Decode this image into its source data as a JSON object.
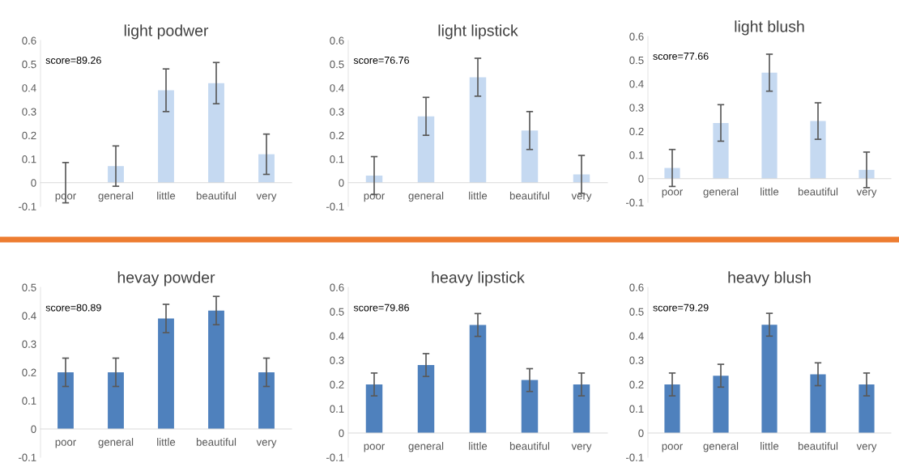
{
  "chart_data": [
    {
      "type": "bar",
      "title": "light podwer",
      "annotations": [
        "score=89.26"
      ],
      "categories": [
        "poor",
        "general",
        "little",
        "beautiful",
        "very"
      ],
      "values": [
        0,
        0.07,
        0.39,
        0.42,
        0.12
      ],
      "errors": [
        0.085,
        0.085,
        0.09,
        0.087,
        0.085
      ],
      "color": "#c5d9f1",
      "ylim": [
        -0.1,
        0.6
      ],
      "yticks": [
        -0.1,
        0,
        0.1,
        0.2,
        0.3,
        0.4,
        0.5,
        0.6
      ],
      "grid": false
    },
    {
      "type": "bar",
      "title": "light lipstick",
      "annotations": [
        "score=76.76"
      ],
      "categories": [
        "poor",
        "general",
        "little",
        "beautiful",
        "very"
      ],
      "values": [
        0.03,
        0.28,
        0.445,
        0.22,
        0.035
      ],
      "errors": [
        0.08,
        0.08,
        0.08,
        0.08,
        0.08
      ],
      "color": "#c5d9f1",
      "ylim": [
        -0.1,
        0.6
      ],
      "yticks": [
        -0.1,
        0,
        0.1,
        0.2,
        0.3,
        0.4,
        0.5,
        0.6
      ],
      "grid": false
    },
    {
      "type": "bar",
      "title": "light blush",
      "annotations": [
        "score=77.66"
      ],
      "categories": [
        "poor",
        "general",
        "little",
        "beautiful",
        "very"
      ],
      "values": [
        0.045,
        0.235,
        0.447,
        0.243,
        0.037
      ],
      "errors": [
        0.078,
        0.077,
        0.078,
        0.077,
        0.075
      ],
      "color": "#c5d9f1",
      "ylim": [
        -0.1,
        0.6
      ],
      "yticks": [
        -0.1,
        0,
        0.1,
        0.2,
        0.3,
        0.4,
        0.5,
        0.6
      ],
      "grid": false
    },
    {
      "type": "bar",
      "title": "hevay powder",
      "annotations": [
        "score=80.89"
      ],
      "categories": [
        "poor",
        "general",
        "little",
        "beautiful",
        "very"
      ],
      "values": [
        0.2,
        0.2,
        0.39,
        0.418,
        0.2
      ],
      "errors": [
        0.05,
        0.05,
        0.05,
        0.05,
        0.05
      ],
      "color": "#4f81bd",
      "ylim": [
        -0.1,
        0.5
      ],
      "yticks": [
        -0.1,
        0,
        0.1,
        0.2,
        0.3,
        0.4,
        0.5
      ],
      "grid": false
    },
    {
      "type": "bar",
      "title": "heavy lipstick",
      "annotations": [
        "score=79.86"
      ],
      "categories": [
        "poor",
        "general",
        "little",
        "beautiful",
        "very"
      ],
      "values": [
        0.2,
        0.28,
        0.445,
        0.218,
        0.2
      ],
      "errors": [
        0.047,
        0.047,
        0.047,
        0.047,
        0.047
      ],
      "color": "#4f81bd",
      "ylim": [
        -0.1,
        0.6
      ],
      "yticks": [
        -0.1,
        0,
        0.1,
        0.2,
        0.3,
        0.4,
        0.5,
        0.6
      ],
      "grid": false
    },
    {
      "type": "bar",
      "title": "heavy blush",
      "annotations": [
        "score=79.29"
      ],
      "categories": [
        "poor",
        "general",
        "little",
        "beautiful",
        "very"
      ],
      "values": [
        0.2,
        0.236,
        0.446,
        0.242,
        0.2
      ],
      "errors": [
        0.047,
        0.047,
        0.047,
        0.047,
        0.047
      ],
      "color": "#4f81bd",
      "ylim": [
        -0.1,
        0.6
      ],
      "yticks": [
        -0.1,
        0,
        0.1,
        0.2,
        0.3,
        0.4,
        0.5,
        0.6
      ],
      "grid": false
    }
  ]
}
